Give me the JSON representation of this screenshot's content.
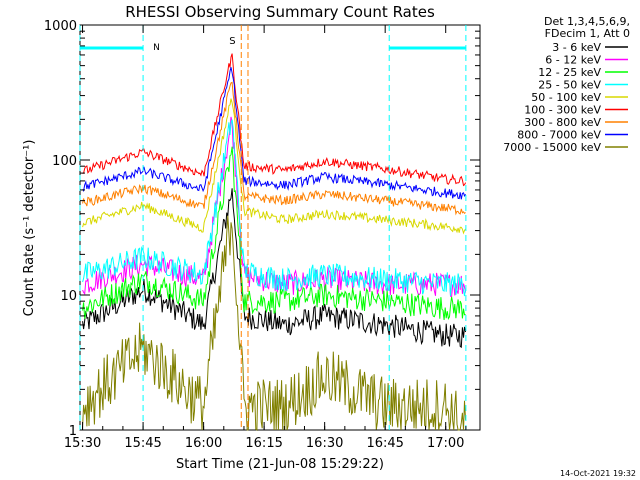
{
  "chart_data": {
    "type": "line",
    "title": "RHESSI Observing Summary Count Rates",
    "xlabel": "Start Time (21-Jun-08 15:29:22)",
    "ylabel": "Count Rate (s⁻¹ detector⁻¹)",
    "y_scale": "log",
    "ylim": [
      1,
      1000
    ],
    "xlim": [
      "15:29:22",
      "17:08:30"
    ],
    "x_ticks": [
      "15:30",
      "15:45",
      "16:00",
      "16:15",
      "16:30",
      "16:45",
      "17:00"
    ],
    "y_ticks": [
      "1",
      "10",
      "100",
      "1000"
    ],
    "grid": false,
    "legend_position": "right",
    "legend_header": [
      "Det 1,3,4,5,6,9,",
      "FDecim 1, Att 0"
    ],
    "series": [
      {
        "name": "3 - 6 keV",
        "color": "#000000",
        "x": [
          "15:30",
          "15:45",
          "16:00",
          "16:07",
          "16:10",
          "16:20",
          "16:30",
          "16:45",
          "17:00",
          "17:05"
        ],
        "values": [
          6,
          11,
          6,
          60,
          7,
          6,
          7,
          6,
          5,
          5
        ]
      },
      {
        "name": "6 - 12 keV",
        "color": "#ff00ff",
        "x": [
          "15:30",
          "15:45",
          "16:00",
          "16:07",
          "16:10",
          "16:20",
          "16:30",
          "16:45",
          "17:00",
          "17:05"
        ],
        "values": [
          12,
          17,
          13,
          200,
          14,
          12,
          13,
          12,
          12,
          12
        ]
      },
      {
        "name": "12 - 25 keV",
        "color": "#00ff00",
        "x": [
          "15:30",
          "15:45",
          "16:00",
          "16:07",
          "16:10",
          "16:20",
          "16:30",
          "16:45",
          "17:00",
          "17:05"
        ],
        "values": [
          8,
          13,
          9,
          120,
          9,
          9,
          10,
          9,
          8,
          8
        ]
      },
      {
        "name": "25 - 50 keV",
        "color": "#00ffff",
        "x": [
          "15:30",
          "15:45",
          "16:00",
          "16:07",
          "16:10",
          "16:20",
          "16:30",
          "16:45",
          "17:00",
          "17:05"
        ],
        "values": [
          14,
          19,
          14,
          210,
          15,
          13,
          14,
          13,
          12,
          12
        ]
      },
      {
        "name": "50 - 100 keV",
        "color": "#d8d800",
        "x": [
          "15:30",
          "15:45",
          "16:00",
          "16:07",
          "16:10",
          "16:20",
          "16:30",
          "16:45",
          "17:00",
          "17:05"
        ],
        "values": [
          34,
          46,
          31,
          300,
          42,
          36,
          40,
          36,
          32,
          31
        ]
      },
      {
        "name": "100 - 300 keV",
        "color": "#ff0000",
        "x": [
          "15:30",
          "15:45",
          "16:00",
          "16:07",
          "16:10",
          "16:20",
          "16:30",
          "16:45",
          "17:00",
          "17:05"
        ],
        "values": [
          82,
          115,
          78,
          600,
          90,
          84,
          98,
          86,
          72,
          70
        ]
      },
      {
        "name": "300 - 800 keV",
        "color": "#ff8000",
        "x": [
          "15:30",
          "15:45",
          "16:00",
          "16:07",
          "16:10",
          "16:20",
          "16:30",
          "16:45",
          "17:00",
          "17:05"
        ],
        "values": [
          48,
          62,
          45,
          400,
          54,
          50,
          56,
          50,
          44,
          42
        ]
      },
      {
        "name": "800 - 7000 keV",
        "color": "#0000ff",
        "x": [
          "15:30",
          "15:45",
          "16:00",
          "16:07",
          "16:10",
          "16:20",
          "16:30",
          "16:45",
          "17:00",
          "17:05"
        ],
        "values": [
          63,
          83,
          60,
          500,
          70,
          65,
          75,
          66,
          57,
          55
        ]
      },
      {
        "name": "7000 - 15000 keV",
        "color": "#808000",
        "x": [
          "15:30",
          "15:45",
          "16:00",
          "16:07",
          "16:10",
          "16:20",
          "16:30",
          "16:45",
          "17:00",
          "17:05"
        ],
        "values": [
          1.5,
          4,
          1.5,
          40,
          1.5,
          1.5,
          2.5,
          1.5,
          1.5,
          1
        ]
      }
    ],
    "annotations": [
      {
        "label": "N",
        "kind": "night",
        "color": "#00ffff",
        "intervals": [
          [
            "15:29:22",
            "15:45"
          ],
          [
            "16:46",
            "17:05"
          ]
        ]
      },
      {
        "label": "S",
        "kind": "saa",
        "color": "#ff8000",
        "times": [
          "16:09:20",
          "16:11:00"
        ]
      }
    ]
  },
  "footer_stamp": "14-Oct-2021 19:32"
}
